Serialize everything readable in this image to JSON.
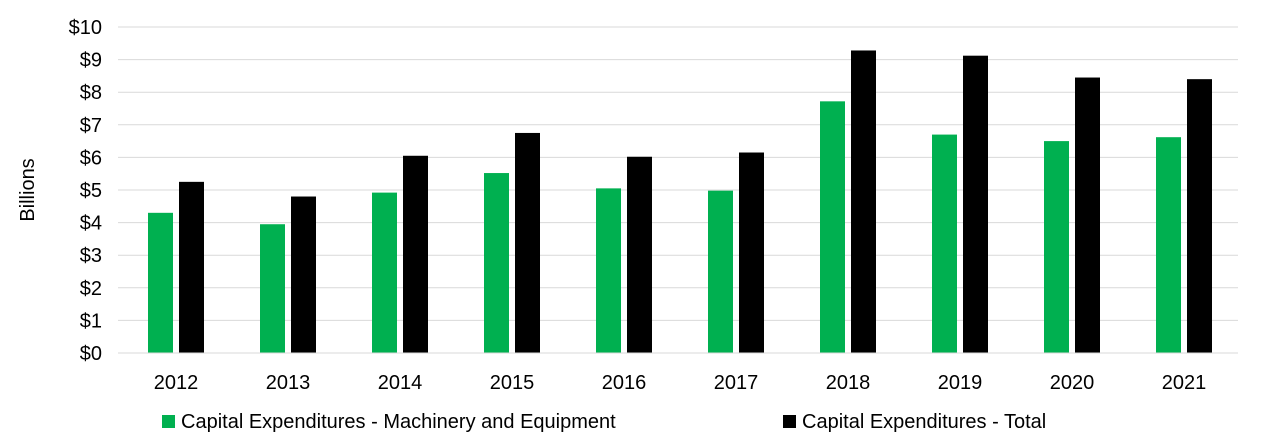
{
  "chart_data": {
    "type": "bar",
    "title": "",
    "xlabel": "",
    "ylabel": "Billions",
    "ylim": [
      0,
      10
    ],
    "y_ticks": [
      0,
      1,
      2,
      3,
      4,
      5,
      6,
      7,
      8,
      9,
      10
    ],
    "y_tick_prefix": "$",
    "grid": true,
    "legend_position": "bottom",
    "categories": [
      "2012",
      "2013",
      "2014",
      "2015",
      "2016",
      "2017",
      "2018",
      "2019",
      "2020",
      "2021"
    ],
    "series": [
      {
        "name": "Capital Expenditures - Machinery and Equipment",
        "color": "#00b050",
        "values": [
          4.3,
          3.95,
          4.92,
          5.52,
          5.05,
          4.98,
          7.72,
          6.7,
          6.5,
          6.62
        ]
      },
      {
        "name": "Capital Expenditures - Total",
        "color": "#000000",
        "values": [
          5.25,
          4.8,
          6.05,
          6.75,
          6.02,
          6.15,
          9.28,
          9.12,
          8.45,
          8.4
        ]
      }
    ]
  }
}
